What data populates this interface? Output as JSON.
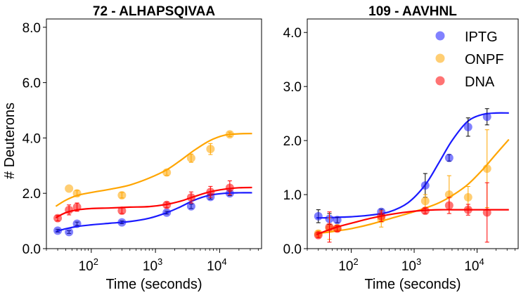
{
  "chart_data": [
    {
      "type": "scatter",
      "title": "72 - ALHAPSQIVAA",
      "xlabel": "Time (seconds)",
      "ylabel": "# Deuterons",
      "xscale": "log",
      "xlim": [
        20,
        45000
      ],
      "ylim": [
        0,
        8.3
      ],
      "yticks": [
        "0.0",
        "2.0",
        "4.0",
        "6.0",
        "8.0"
      ],
      "ytick_values": [
        0,
        2,
        4,
        6,
        8
      ],
      "xticks": [
        "10^2",
        "10^3",
        "10^4"
      ],
      "xtick_values": [
        100,
        1000,
        10000
      ],
      "series": [
        {
          "name": "IPTG",
          "color": "#1a1aff",
          "x": [
            30,
            45,
            60,
            300,
            1500,
            3600,
            7200,
            14400
          ],
          "y": [
            0.65,
            0.6,
            0.9,
            0.95,
            1.3,
            1.53,
            1.87,
            2.0
          ],
          "err": [
            0.05,
            0.05,
            0.06,
            0.05,
            0.05,
            0.08,
            0.08,
            0.08
          ],
          "fit_x": [
            28,
            40,
            60,
            100,
            200,
            400,
            800,
            1500,
            2500,
            4000,
            7000,
            12000,
            20000,
            32000
          ],
          "fit_y": [
            0.62,
            0.72,
            0.8,
            0.86,
            0.92,
            0.98,
            1.1,
            1.3,
            1.52,
            1.75,
            1.93,
            2.0,
            2.02,
            2.02
          ]
        },
        {
          "name": "ONPF",
          "color": "#ffa500",
          "x": [
            45,
            60,
            300,
            1500,
            3600,
            7200,
            14400
          ],
          "y": [
            2.17,
            2.0,
            1.93,
            2.75,
            3.27,
            3.6,
            4.13
          ],
          "err": [
            0.0,
            0.1,
            0.1,
            0.1,
            0.15,
            0.2,
            0.08
          ],
          "fit_x": [
            28,
            40,
            60,
            100,
            200,
            400,
            800,
            1500,
            2500,
            4000,
            7000,
            12000,
            20000,
            32000
          ],
          "fit_y": [
            1.53,
            1.75,
            1.92,
            2.03,
            2.15,
            2.3,
            2.55,
            2.85,
            3.2,
            3.55,
            3.9,
            4.1,
            4.15,
            4.16
          ]
        },
        {
          "name": "DNA",
          "color": "#ff0000",
          "x": [
            30,
            45,
            60,
            300,
            1500,
            3600,
            7200,
            14400
          ],
          "y": [
            1.1,
            1.4,
            1.5,
            1.37,
            1.58,
            1.85,
            2.05,
            2.2
          ],
          "err": [
            0.1,
            0.18,
            0.15,
            0.1,
            0.1,
            0.2,
            0.2,
            0.25
          ],
          "fit_x": [
            28,
            40,
            60,
            100,
            200,
            400,
            800,
            1500,
            2500,
            4000,
            7000,
            12000,
            20000,
            32000
          ],
          "fit_y": [
            1.12,
            1.3,
            1.4,
            1.45,
            1.47,
            1.5,
            1.52,
            1.6,
            1.72,
            1.88,
            2.05,
            2.15,
            2.2,
            2.21
          ]
        }
      ]
    },
    {
      "type": "scatter",
      "title": "109 - AAVHNL",
      "xlabel": "Time (seconds)",
      "ylabel": "",
      "xscale": "log",
      "xlim": [
        20,
        45000
      ],
      "ylim": [
        0,
        4.25
      ],
      "yticks": [
        "0.0",
        "1.0",
        "2.0",
        "3.0",
        "4.0"
      ],
      "ytick_values": [
        0,
        1,
        2,
        3,
        4
      ],
      "xticks": [
        "10^2",
        "10^3",
        "10^4"
      ],
      "xtick_values": [
        100,
        1000,
        10000
      ],
      "legend": "top-right",
      "series": [
        {
          "name": "IPTG",
          "color": "#1a1aff",
          "x": [
            30,
            45,
            60,
            300,
            1500,
            3600,
            7200,
            14400
          ],
          "y": [
            0.6,
            0.55,
            0.53,
            0.68,
            1.17,
            1.68,
            2.25,
            2.44
          ],
          "err": [
            0.12,
            0.1,
            0.05,
            0.05,
            0.22,
            0.06,
            0.17,
            0.15
          ],
          "fit_x": [
            28,
            40,
            60,
            100,
            200,
            400,
            800,
            1500,
            2500,
            4000,
            7000,
            12000,
            20000,
            32000
          ],
          "fit_y": [
            0.57,
            0.57,
            0.58,
            0.59,
            0.62,
            0.68,
            0.85,
            1.18,
            1.6,
            2.0,
            2.35,
            2.48,
            2.51,
            2.51
          ]
        },
        {
          "name": "ONPF",
          "color": "#ffa500",
          "x": [
            30,
            45,
            60,
            300,
            1500,
            3600,
            7200,
            14400
          ],
          "y": [
            0.28,
            0.37,
            0.38,
            0.55,
            0.88,
            1.0,
            0.95,
            1.48
          ],
          "err": [
            0.05,
            0.2,
            0.05,
            0.15,
            0.12,
            0.35,
            0.2,
            0.72
          ],
          "fit_x": [
            28,
            40,
            60,
            100,
            200,
            400,
            800,
            1500,
            2500,
            4000,
            7000,
            12000,
            20000,
            32000
          ],
          "fit_y": [
            0.28,
            0.3,
            0.33,
            0.37,
            0.45,
            0.55,
            0.65,
            0.75,
            0.85,
            0.98,
            1.18,
            1.45,
            1.75,
            2.02
          ]
        },
        {
          "name": "DNA",
          "color": "#ff0000",
          "x": [
            30,
            45,
            60,
            300,
            1500,
            3600,
            7200,
            14400
          ],
          "y": [
            0.25,
            0.4,
            0.37,
            0.6,
            0.7,
            0.8,
            0.72,
            0.67
          ],
          "err": [
            0.05,
            0.28,
            0.05,
            0.1,
            0.05,
            0.15,
            0.1,
            0.55
          ],
          "fit_x": [
            28,
            40,
            60,
            100,
            200,
            400,
            800,
            1500,
            2500,
            4000,
            7000,
            12000,
            20000,
            32000
          ],
          "fit_y": [
            0.26,
            0.33,
            0.4,
            0.47,
            0.56,
            0.63,
            0.68,
            0.71,
            0.72,
            0.72,
            0.72,
            0.72,
            0.72,
            0.72
          ]
        }
      ]
    }
  ]
}
